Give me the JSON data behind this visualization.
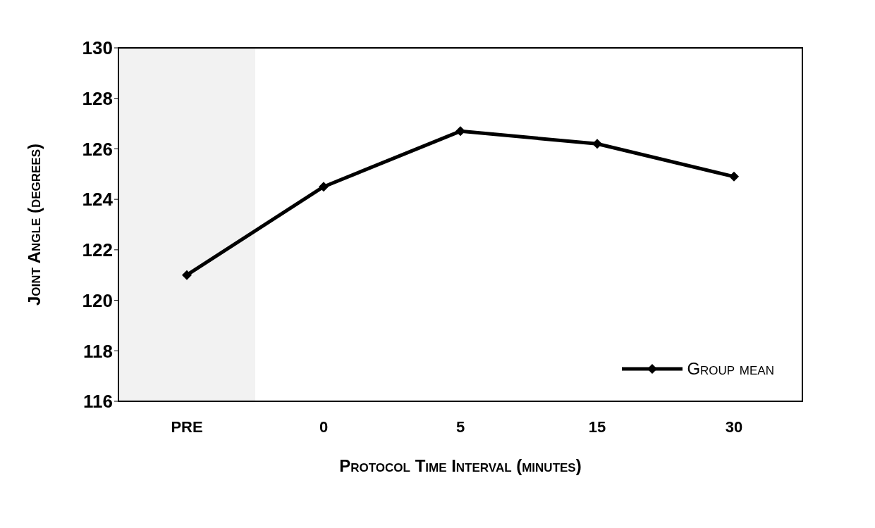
{
  "chart_data": {
    "type": "line",
    "xlabel": "Protocol Time Interval (minutes)",
    "ylabel": "Joint Angle (degrees)",
    "categories": [
      "PRE",
      "0",
      "5",
      "15",
      "30"
    ],
    "series": [
      {
        "name": "Group mean",
        "color": "#000000",
        "values": [
          121.0,
          124.5,
          126.7,
          126.2,
          124.9
        ]
      }
    ],
    "ylim": [
      116,
      130
    ],
    "yticks": [
      116,
      118,
      120,
      122,
      124,
      126,
      128,
      130
    ],
    "grid": false,
    "legend": "bottom right",
    "marker": "diamond",
    "line_style": "solid",
    "bands": [
      {
        "axis": "x",
        "from": "PRE",
        "to": "PRE",
        "color": "#f2f2f2"
      }
    ]
  }
}
